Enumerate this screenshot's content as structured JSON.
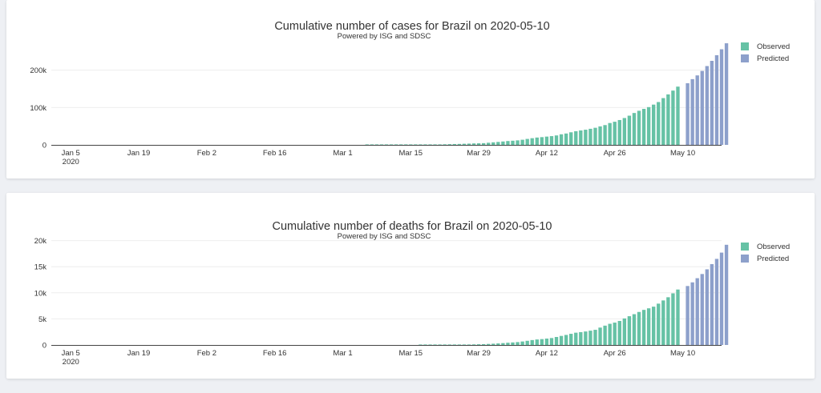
{
  "colors": {
    "observed": "#66c2a5",
    "predicted": "#8da0cb",
    "axis": "#444444",
    "grid": "#eeeeee"
  },
  "charts": [
    {
      "title": "Cumulative number of cases for Brazil on 2020-05-10",
      "subtitle": "Powered by ISG and SDSC",
      "legend": {
        "observed": "Observed",
        "predicted": "Predicted"
      }
    },
    {
      "title": "Cumulative number of deaths for Brazil on 2020-05-10",
      "subtitle": "Powered by ISG and SDSC",
      "legend": {
        "observed": "Observed",
        "predicted": "Predicted"
      }
    }
  ],
  "chart_data": [
    {
      "type": "bar",
      "title": "Cumulative number of cases for Brazil on 2020-05-10",
      "subtitle": "Powered by ISG and SDSC",
      "xlabel": "",
      "ylabel": "",
      "x_range": [
        "2020-01-01",
        "2020-05-18"
      ],
      "x_ticks": [
        "Jan 5\n2020",
        "Jan 19",
        "Feb 2",
        "Feb 16",
        "Mar 1",
        "Mar 15",
        "Mar 29",
        "Apr 12",
        "Apr 26",
        "May 10"
      ],
      "y_ticks": [
        "0",
        "100k",
        "200k"
      ],
      "ylim": [
        0,
        285000
      ],
      "legend_position": "top-right",
      "series": [
        {
          "name": "Observed",
          "start": "2020-03-06",
          "values": [
            13,
            19,
            25,
            25,
            34,
            52,
            77,
            98,
            121,
            200,
            234,
            291,
            428,
            621,
            904,
            1128,
            1546,
            1924,
            2247,
            2554,
            2985,
            3417,
            3904,
            4256,
            4579,
            5717,
            6836,
            7910,
            9056,
            10278,
            11130,
            12056,
            13717,
            15927,
            17857,
            19638,
            20727,
            22169,
            23430,
            25262,
            28320,
            30425,
            33682,
            36599,
            38654,
            40581,
            43079,
            45757,
            49492,
            52995,
            58509,
            61888,
            66501,
            71886,
            78162,
            85380,
            91299,
            96396,
            101147,
            107780,
            114715,
            125218,
            135106,
            145328,
            155939
          ]
        },
        {
          "name": "Predicted",
          "start": "2020-05-11",
          "values": [
            165000,
            176000,
            186000,
            198000,
            211000,
            225000,
            240000,
            256000,
            272000
          ]
        }
      ]
    },
    {
      "type": "bar",
      "title": "Cumulative number of deaths for Brazil on 2020-05-10",
      "subtitle": "Powered by ISG and SDSC",
      "xlabel": "",
      "ylabel": "",
      "x_range": [
        "2020-01-01",
        "2020-05-18"
      ],
      "x_ticks": [
        "Jan 5\n2020",
        "Jan 19",
        "Feb 2",
        "Feb 16",
        "Mar 1",
        "Mar 15",
        "Mar 29",
        "Apr 12",
        "Apr 26",
        "May 10"
      ],
      "y_ticks": [
        "0",
        "5k",
        "10k",
        "15k",
        "20k"
      ],
      "ylim": [
        0,
        20400
      ],
      "legend_position": "top-right",
      "series": [
        {
          "name": "Observed",
          "start": "2020-03-06",
          "values": [
            0,
            0,
            0,
            0,
            0,
            0,
            0,
            0,
            0,
            0,
            0,
            1,
            4,
            6,
            11,
            18,
            25,
            34,
            46,
            59,
            77,
            92,
            114,
            136,
            159,
            201,
            241,
            299,
            359,
            432,
            486,
            553,
            667,
            800,
            941,
            1056,
            1124,
            1223,
            1328,
            1532,
            1736,
            1924,
            2141,
            2354,
            2462,
            2587,
            2741,
            2906,
            3331,
            3704,
            4057,
            4286,
            4603,
            5083,
            5513,
            5901,
            6329,
            6724,
            7025,
            7343,
            7921,
            8536,
            9146,
            9897,
            10627
          ]
        },
        {
          "name": "Predicted",
          "start": "2020-05-11",
          "values": [
            11300,
            12000,
            12800,
            13600,
            14500,
            15500,
            16500,
            17700,
            19200
          ]
        }
      ]
    }
  ]
}
